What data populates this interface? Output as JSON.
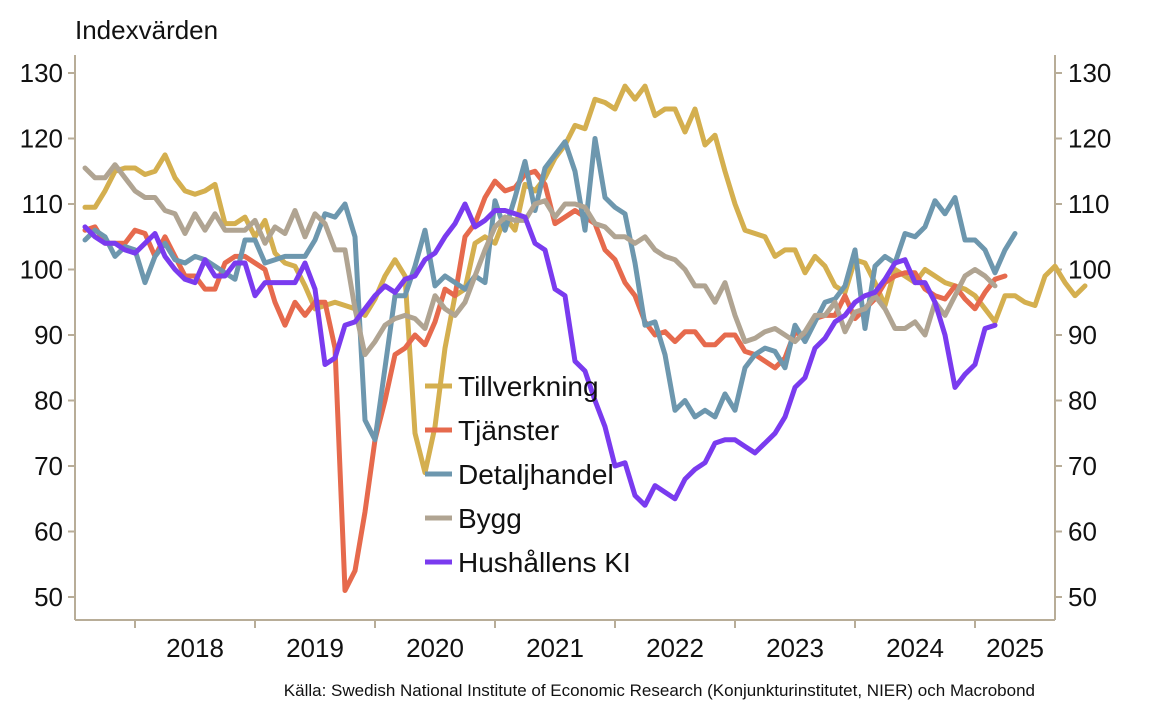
{
  "chart_data": {
    "type": "line",
    "ylabel": "Indexvärden",
    "source": "Källa: Swedish National Institute of Economic Research (Konjunkturinstitutet, NIER)  och Macrobond",
    "ylim": [
      50,
      130
    ],
    "yticks": [
      50,
      60,
      70,
      80,
      90,
      100,
      110,
      120,
      130
    ],
    "y_axes": [
      "left",
      "right"
    ],
    "x_start": "2017-08",
    "x_end": "2025-07",
    "xlim": [
      "2017-07",
      "2025-09"
    ],
    "year_labels": [
      "2018",
      "2019",
      "2020",
      "2021",
      "2022",
      "2023",
      "2024",
      "2025"
    ],
    "grid": false,
    "legend_placement": "center-left",
    "series": [
      {
        "name": "Tillverkning",
        "color": "#D4AF4F",
        "values": [
          109.5,
          109.5,
          112,
          115,
          115.5,
          115.5,
          114.5,
          115,
          117.5,
          114,
          112,
          111.5,
          112,
          113,
          107,
          107,
          108,
          105,
          107.5,
          102.5,
          101,
          100.5,
          97.5,
          94,
          94.5,
          95,
          94.5,
          94,
          93,
          95.5,
          99,
          101.5,
          99,
          75,
          69,
          76,
          88,
          96,
          97,
          104,
          105,
          104,
          108,
          106,
          113,
          112,
          114,
          117,
          119,
          122,
          121.5,
          126,
          125.5,
          124.5,
          128,
          126,
          128,
          123.5,
          124.5,
          124.5,
          121,
          124.5,
          119,
          120.5,
          115,
          110,
          106,
          105.5,
          105,
          102,
          103,
          103,
          99.5,
          102,
          100.5,
          97.5,
          96.5,
          101.5,
          101,
          98,
          94.5,
          100,
          99,
          98,
          100,
          99,
          98,
          97.5,
          97,
          96,
          94,
          92,
          96,
          96,
          95,
          94.5,
          99,
          100.5,
          98,
          96,
          97.5
        ]
      },
      {
        "name": "Tjänster",
        "color": "#E66A4D",
        "values": [
          106,
          106.5,
          104,
          104,
          104,
          106,
          105.5,
          102,
          105,
          102,
          99,
          99,
          97,
          97,
          101,
          102,
          102,
          101,
          100,
          95,
          91.5,
          95,
          93,
          95,
          95,
          88,
          51,
          54,
          63,
          74,
          80,
          87,
          88,
          90,
          88.5,
          92,
          97,
          96,
          105,
          107,
          111,
          113.5,
          112,
          112.5,
          114.5,
          115,
          113,
          107,
          108,
          109,
          108,
          107,
          103,
          101.5,
          98,
          96,
          92,
          90,
          90.5,
          89,
          90.5,
          90.5,
          88.5,
          88.5,
          90,
          90,
          87.5,
          87,
          86,
          85,
          86.5,
          90.5,
          89.5,
          92.5,
          93,
          93,
          96,
          92.5,
          94,
          95.5,
          98,
          99,
          99.5,
          99.5,
          97,
          96,
          95.5,
          97.5,
          95.5,
          94,
          96.5,
          98.5,
          99
        ]
      },
      {
        "name": "Detaljhandel",
        "color": "#6D97AE",
        "values": [
          104.5,
          106,
          105,
          102,
          103.5,
          103,
          98,
          102,
          104,
          101.5,
          101,
          102,
          101.5,
          100.5,
          99.5,
          98.5,
          104.5,
          104.5,
          101,
          101.5,
          102,
          102,
          102,
          104.5,
          108.5,
          108,
          110,
          105,
          77,
          74,
          85,
          96,
          96,
          100.5,
          106,
          97.5,
          99,
          98,
          97,
          99,
          98,
          110.5,
          106,
          111,
          116.5,
          109,
          115.5,
          117.5,
          119.5,
          115,
          106,
          120,
          111,
          109.5,
          108.5,
          101,
          91.5,
          92,
          87,
          78.5,
          80,
          77.5,
          78.5,
          77.5,
          81,
          78.5,
          85,
          87,
          88,
          87.5,
          85,
          91.5,
          89,
          92,
          95,
          95.5,
          97.5,
          103,
          91,
          100.5,
          102,
          101,
          105.5,
          105,
          106.5,
          110.5,
          108.5,
          111,
          104.5,
          104.5,
          103,
          99.5,
          103,
          105.5
        ]
      },
      {
        "name": "Bygg",
        "color": "#B0A492",
        "values": [
          115.5,
          114,
          114,
          116,
          114,
          112,
          111,
          111,
          109,
          108.5,
          105.5,
          108.5,
          106,
          108.5,
          106,
          106,
          106,
          107.5,
          104,
          106.5,
          105.5,
          109,
          105,
          108.5,
          107,
          103,
          103,
          94,
          87,
          89,
          91.5,
          92.5,
          93,
          92.5,
          91,
          96,
          94,
          93,
          95,
          99,
          103,
          106.5,
          108,
          107.5,
          107.5,
          110,
          110.5,
          108,
          110,
          110,
          109.5,
          107,
          106.5,
          105,
          105,
          104,
          105,
          103,
          102,
          101.5,
          100,
          97.5,
          97.5,
          95,
          98,
          93,
          89,
          89.5,
          90.5,
          91,
          90,
          89,
          90.5,
          93,
          93,
          95,
          90.5,
          93.5,
          94,
          96,
          94,
          91,
          91,
          92,
          90,
          95,
          93,
          96,
          99,
          100,
          99,
          97.5
        ]
      },
      {
        "name": "Hushållens KI",
        "color": "#7A3BEF",
        "values": [
          106.5,
          105,
          104,
          104,
          103,
          102.5,
          104,
          105.5,
          102,
          100,
          98.5,
          98,
          101.5,
          99,
          99,
          101,
          101,
          96,
          98,
          98,
          98,
          98,
          101,
          97,
          85.5,
          86.5,
          91.5,
          92,
          94,
          96,
          97.5,
          96.5,
          98.5,
          99,
          101.5,
          102.5,
          105,
          107,
          110,
          106.5,
          107.5,
          109,
          109,
          108.5,
          108,
          104,
          103,
          97,
          96,
          86,
          84.5,
          80,
          76,
          70,
          70.5,
          65.5,
          64,
          67,
          66,
          65,
          68,
          69.5,
          70.5,
          73.5,
          74,
          74,
          73,
          72,
          73.5,
          75,
          77.5,
          82,
          83.5,
          88,
          89.5,
          92,
          93,
          95,
          96,
          96.5,
          98.5,
          101,
          101.5,
          98,
          98,
          95,
          90,
          82,
          84,
          85.5,
          91,
          91.5
        ]
      }
    ]
  }
}
